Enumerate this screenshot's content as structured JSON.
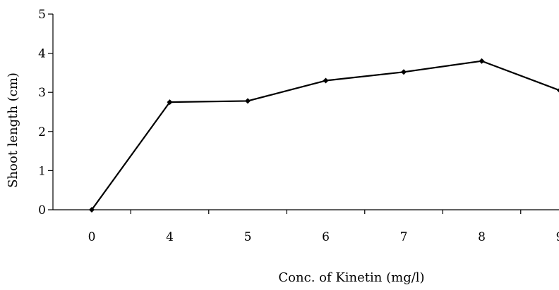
{
  "chart_data": {
    "type": "line",
    "title": "",
    "xlabel": "Conc. of Kinetin (mg/l)",
    "ylabel": "Shoot length (cm)",
    "categories": [
      "0",
      "4",
      "5",
      "6",
      "7",
      "8",
      "9"
    ],
    "series": [
      {
        "values": [
          0,
          2.75,
          2.78,
          3.3,
          3.52,
          3.8,
          3.05
        ]
      }
    ],
    "ylim": [
      0,
      5
    ],
    "yticks": [
      "0",
      "1",
      "2",
      "3",
      "4",
      "5"
    ],
    "grid": false,
    "legend": "none",
    "line_color": "#000000"
  }
}
